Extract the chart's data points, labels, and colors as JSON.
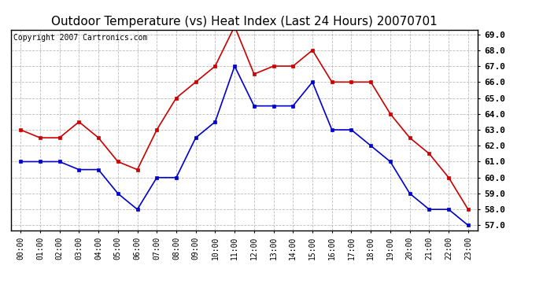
{
  "title": "Outdoor Temperature (vs) Heat Index (Last 24 Hours) 20070701",
  "copyright": "Copyright 2007 Cartronics.com",
  "hours": [
    "00:00",
    "01:00",
    "02:00",
    "03:00",
    "04:00",
    "05:00",
    "06:00",
    "07:00",
    "08:00",
    "09:00",
    "10:00",
    "11:00",
    "12:00",
    "13:00",
    "14:00",
    "15:00",
    "16:00",
    "17:00",
    "18:00",
    "19:00",
    "20:00",
    "21:00",
    "22:00",
    "23:00"
  ],
  "temp": [
    61.0,
    61.0,
    61.0,
    60.5,
    60.5,
    59.0,
    58.0,
    60.0,
    60.0,
    62.5,
    63.5,
    67.0,
    64.5,
    64.5,
    64.5,
    66.0,
    63.0,
    63.0,
    62.0,
    61.0,
    59.0,
    58.0,
    58.0,
    57.0
  ],
  "heat_index": [
    63.0,
    62.5,
    62.5,
    63.5,
    62.5,
    61.0,
    60.5,
    63.0,
    65.0,
    66.0,
    67.0,
    69.5,
    66.5,
    67.0,
    67.0,
    68.0,
    66.0,
    66.0,
    66.0,
    64.0,
    62.5,
    61.5,
    60.0,
    58.0
  ],
  "temp_color": "#0000cc",
  "heat_color": "#cc0000",
  "ylim_min": 57.0,
  "ylim_max": 69.0,
  "ytick_step": 1.0,
  "bg_color": "#ffffff",
  "plot_bg": "#ffffff",
  "grid_color": "#bbbbbb",
  "title_fontsize": 11,
  "copyright_fontsize": 7,
  "tick_fontsize": 7,
  "ytick_fontsize": 8
}
